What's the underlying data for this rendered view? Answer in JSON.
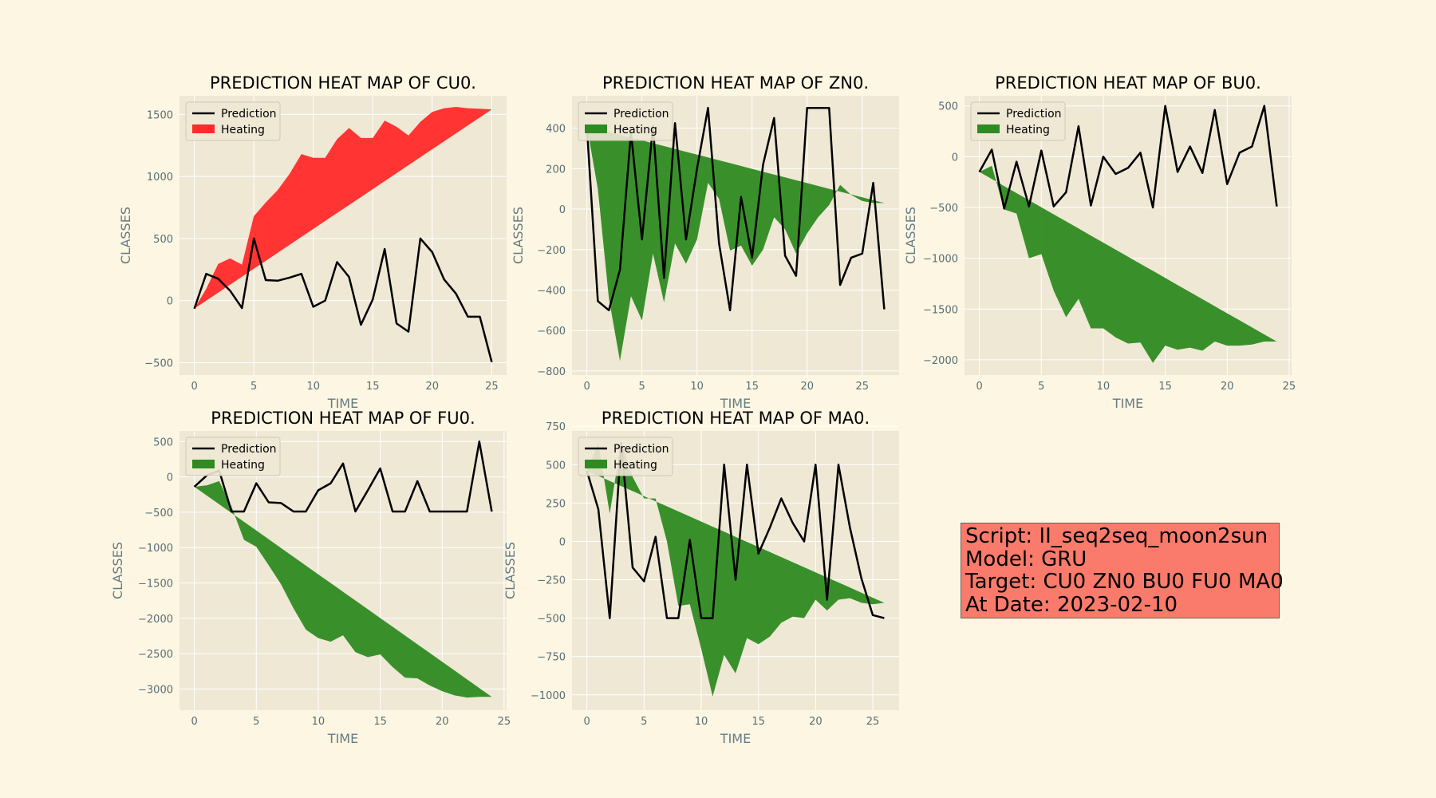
{
  "legend": {
    "prediction": "Prediction",
    "heating": "Heating"
  },
  "colors": {
    "figure_bg": "#fdf6e3",
    "axes_bg": "#eee8d5",
    "prediction_line": "#000000",
    "heating_red": "#ff2a2a",
    "heating_green": "#2e8b22",
    "info_box": "#fa7b6b"
  },
  "info_box": {
    "script": "Script: II_seq2seq_moon2sun",
    "model": "Model: GRU",
    "target": "Target: CU0 ZN0 BU0 FU0 MA0",
    "date": "At Date: 2023-02-10"
  },
  "chart_data": [
    {
      "type": "line",
      "title": "PREDICTION HEAT MAP OF CU0.",
      "xlabel": "TIME",
      "ylabel": "CLASSES",
      "xlim": [
        -1.25,
        26.25
      ],
      "ylim": [
        -600,
        1650
      ],
      "xticks": [
        0,
        5,
        10,
        15,
        20,
        25
      ],
      "yticks": [
        -500,
        0,
        500,
        1000,
        1500
      ],
      "legend_position": "top-left",
      "heating_color": "red",
      "prediction": [
        -65,
        215,
        175,
        80,
        -60,
        500,
        165,
        160,
        185,
        215,
        -50,
        0,
        310,
        190,
        -195,
        10,
        415,
        -185,
        -250,
        500,
        390,
        170,
        55,
        -130,
        -130,
        -495
      ],
      "heating_edge": [
        -65,
        95,
        295,
        340,
        290,
        680,
        790,
        890,
        1020,
        1180,
        1150,
        1150,
        1300,
        1390,
        1310,
        1310,
        1450,
        1400,
        1330,
        1440,
        1520,
        1550,
        1560,
        1550,
        1545,
        1540
      ],
      "heating_baseline": [
        -65,
        1540
      ]
    },
    {
      "type": "line",
      "title": "PREDICTION HEAT MAP OF ZN0.",
      "xlabel": "TIME",
      "ylabel": "CLASSES",
      "xlim": [
        -1.35,
        28.35
      ],
      "ylim": [
        -820,
        560
      ],
      "xticks": [
        0,
        5,
        10,
        15,
        20,
        25
      ],
      "yticks": [
        -800,
        -600,
        -400,
        -200,
        0,
        200,
        400
      ],
      "legend_position": "top-left",
      "heating_color": "green",
      "prediction": [
        410,
        -455,
        -500,
        -300,
        380,
        -150,
        410,
        -340,
        425,
        -150,
        200,
        500,
        -170,
        -500,
        60,
        -240,
        220,
        450,
        -230,
        -330,
        500,
        500,
        500,
        -375,
        -240,
        -220,
        130,
        -495
      ],
      "heating_edge": [
        410,
        100,
        -440,
        -750,
        -430,
        -550,
        -220,
        -460,
        -170,
        -270,
        -150,
        130,
        50,
        -205,
        -180,
        -280,
        -200,
        -40,
        -100,
        -220,
        -120,
        -40,
        20,
        120,
        70,
        40,
        30,
        30
      ],
      "heating_baseline": [
        410,
        30
      ]
    },
    {
      "type": "line",
      "title": "PREDICTION HEAT MAP OF BU0.",
      "xlabel": "TIME",
      "ylabel": "CLASSES",
      "xlim": [
        -1.2,
        25.2
      ],
      "ylim": [
        -2150,
        600
      ],
      "xticks": [
        0,
        5,
        10,
        15,
        20,
        25
      ],
      "yticks": [
        -2000,
        -1500,
        -1000,
        -500,
        0,
        500
      ],
      "legend_position": "top-left",
      "heating_color": "green",
      "prediction": [
        -150,
        70,
        -510,
        -50,
        -490,
        60,
        -490,
        -350,
        300,
        -480,
        0,
        -170,
        -110,
        40,
        -500,
        500,
        -150,
        100,
        -160,
        460,
        -270,
        40,
        100,
        500,
        -490
      ],
      "heating_edge": [
        -150,
        -90,
        -520,
        -560,
        -1000,
        -960,
        -1320,
        -1580,
        -1400,
        -1690,
        -1690,
        -1780,
        -1840,
        -1830,
        -2030,
        -1860,
        -1900,
        -1880,
        -1910,
        -1820,
        -1860,
        -1860,
        -1850,
        -1820,
        -1820
      ],
      "heating_baseline": [
        -150,
        -1820
      ]
    },
    {
      "type": "line",
      "title": "PREDICTION HEAT MAP OF FU0.",
      "xlabel": "TIME",
      "ylabel": "CLASSES",
      "xlim": [
        -1.2,
        25.2
      ],
      "ylim": [
        -3300,
        650
      ],
      "xticks": [
        0,
        5,
        10,
        15,
        20,
        25
      ],
      "yticks": [
        -3000,
        -2500,
        -2000,
        -1500,
        -1000,
        -500,
        0,
        500
      ],
      "legend_position": "top-left",
      "heating_color": "green",
      "prediction": [
        -140,
        20,
        90,
        -490,
        -490,
        -90,
        -360,
        -370,
        -490,
        -490,
        -190,
        -90,
        190,
        -490,
        -190,
        120,
        -490,
        -490,
        -60,
        -490,
        -490,
        -490,
        -490,
        500,
        -490
      ],
      "heating_edge": [
        -140,
        -120,
        -60,
        -420,
        -890,
        -990,
        -1250,
        -1520,
        -1860,
        -2160,
        -2280,
        -2330,
        -2240,
        -2480,
        -2550,
        -2510,
        -2690,
        -2840,
        -2850,
        -2950,
        -3030,
        -3090,
        -3120,
        -3110,
        -3110
      ],
      "heating_baseline": [
        -140,
        -3110
      ]
    },
    {
      "type": "line",
      "title": "PREDICTION HEAT MAP OF MA0.",
      "xlabel": "TIME",
      "ylabel": "CLASSES",
      "xlim": [
        -1.3,
        27.3
      ],
      "ylim": [
        -1100,
        720
      ],
      "xticks": [
        0,
        5,
        10,
        15,
        20,
        25
      ],
      "yticks": [
        -1000,
        -750,
        -500,
        -250,
        0,
        250,
        500,
        750
      ],
      "legend_position": "top-left",
      "heating_color": "green",
      "prediction": [
        460,
        210,
        -500,
        640,
        -170,
        -260,
        30,
        -500,
        -500,
        10,
        -500,
        -500,
        500,
        -250,
        500,
        -80,
        90,
        280,
        120,
        0,
        500,
        -380,
        500,
        90,
        -240,
        -480,
        -500
      ],
      "heating_edge": [
        460,
        640,
        180,
        650,
        420,
        280,
        280,
        0,
        -420,
        -410,
        -700,
        -1010,
        -740,
        -860,
        -630,
        -670,
        -620,
        -530,
        -490,
        -500,
        -380,
        -450,
        -380,
        -370,
        -400,
        -410,
        -400
      ],
      "heating_baseline": [
        460,
        -400
      ]
    }
  ]
}
